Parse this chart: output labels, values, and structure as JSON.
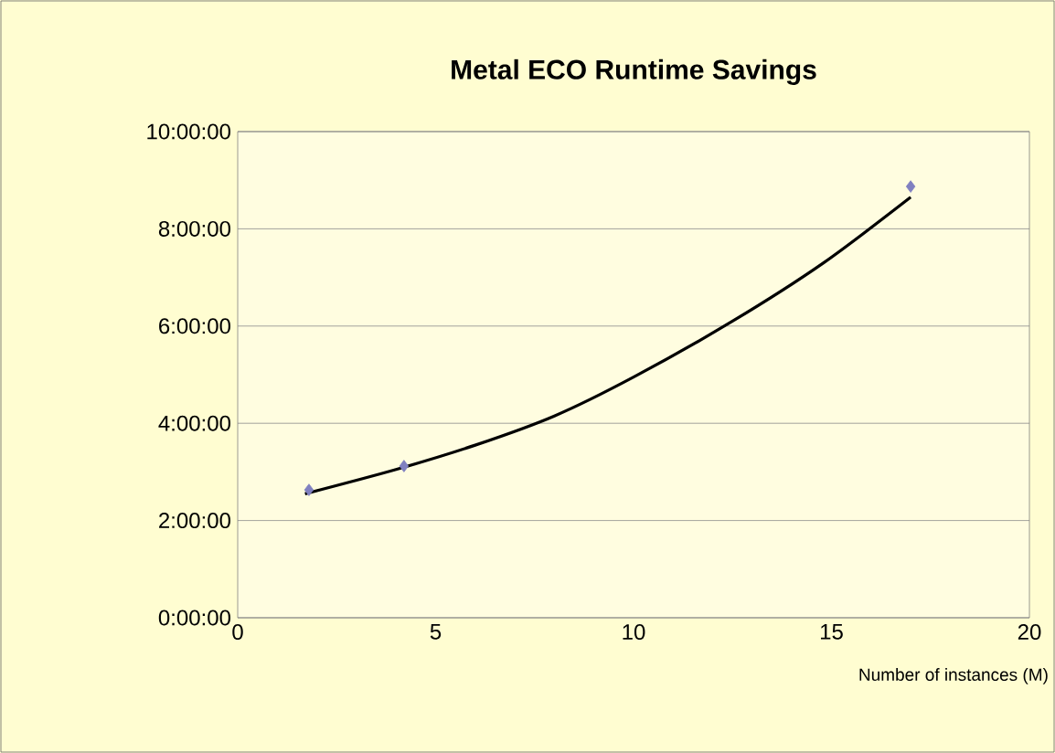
{
  "chart_data": {
    "type": "scatter",
    "title": "Metal ECO Runtime Savings",
    "xlabel": "Number of instances (M)",
    "xlim": [
      0,
      20
    ],
    "xticks": [
      0,
      5,
      10,
      15,
      20
    ],
    "ylim": [
      0,
      10
    ],
    "yticks": [
      {
        "value": 0,
        "label": "0:00:00"
      },
      {
        "value": 2,
        "label": "2:00:00"
      },
      {
        "value": 4,
        "label": "4:00:00"
      },
      {
        "value": 6,
        "label": "6:00:00"
      },
      {
        "value": 8,
        "label": "8:00:00"
      },
      {
        "value": 10,
        "label": "10:00:00"
      }
    ],
    "grid": "y",
    "marker": "diamond",
    "series": [
      {
        "color": "#8080c0",
        "x": [
          1.8,
          4.2,
          17.0
        ],
        "values": [
          2.63,
          3.12,
          8.87
        ]
      },
      {
        "type": "line",
        "color": "#000000",
        "marker": "none",
        "line_style": "solid",
        "x": [
          1.7,
          4.0,
          6.0,
          8.0,
          10.0,
          12.5,
          14.8,
          17.0
        ],
        "values": [
          2.55,
          3.05,
          3.55,
          4.15,
          4.95,
          6.1,
          7.3,
          8.65
        ]
      }
    ]
  }
}
